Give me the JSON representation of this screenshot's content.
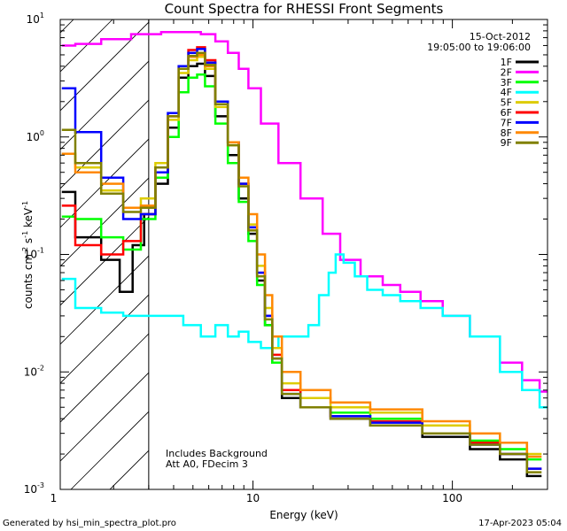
{
  "chart_data": {
    "type": "line",
    "title": "Count Spectra for RHESSI Front Segments",
    "xlabel": "Energy (keV)",
    "ylabel_parts": {
      "a": "counts cm",
      "b": "-2",
      "c": " s",
      "d": "-1",
      "e": " keV",
      "f": "-1"
    },
    "x_scale": "log",
    "y_scale": "log",
    "xlim": [
      1.08,
      300
    ],
    "ylim": [
      0.001,
      10
    ],
    "x_tick_labels": [
      {
        "v": 1,
        "t": "1"
      },
      {
        "v": 10,
        "t": "10"
      },
      {
        "v": 100,
        "t": "100"
      }
    ],
    "y_tick_labels": [
      {
        "v": 0.001,
        "b": "10",
        "e": "-3"
      },
      {
        "v": 0.01,
        "b": "10",
        "e": "-2"
      },
      {
        "v": 0.1,
        "b": "10",
        "e": "-1"
      },
      {
        "v": 1,
        "b": "10",
        "e": "0"
      },
      {
        "v": 10,
        "b": "10",
        "e": "1"
      }
    ],
    "header": {
      "date": "15-Oct-2012",
      "time_range": "19:05:00 to 19:06:00"
    },
    "legend_position": "top-right",
    "annotations": [
      "Includes Background",
      "Att A0, FDecim 3"
    ],
    "shaded_region_upper_kev": 3,
    "series": [
      {
        "name": "1F",
        "color": "#000000",
        "pts": [
          [
            1.1,
            0.34
          ],
          [
            1.5,
            0.14
          ],
          [
            2,
            0.09
          ],
          [
            2.3,
            0.048
          ],
          [
            2.7,
            0.12
          ],
          [
            3,
            0.22
          ],
          [
            3.5,
            0.4
          ],
          [
            4,
            1.2
          ],
          [
            4.5,
            3.2
          ],
          [
            5,
            4.0
          ],
          [
            5.5,
            4.2
          ],
          [
            6,
            3.3
          ],
          [
            7,
            1.5
          ],
          [
            8,
            0.7
          ],
          [
            9,
            0.3
          ],
          [
            10,
            0.15
          ],
          [
            11,
            0.06
          ],
          [
            12,
            0.025
          ],
          [
            13,
            0.012
          ],
          [
            15,
            0.006
          ],
          [
            20,
            0.005
          ],
          [
            30,
            0.004
          ],
          [
            50,
            0.0035
          ],
          [
            100,
            0.0028
          ],
          [
            150,
            0.0022
          ],
          [
            200,
            0.0018
          ],
          [
            280,
            0.0013
          ]
        ]
      },
      {
        "name": "2F",
        "color": "#ff00ff",
        "pts": [
          [
            1.1,
            6.0
          ],
          [
            1.5,
            6.2
          ],
          [
            2,
            6.8
          ],
          [
            3,
            7.5
          ],
          [
            4,
            7.8
          ],
          [
            5,
            7.8
          ],
          [
            6,
            7.5
          ],
          [
            7,
            6.5
          ],
          [
            8,
            5.2
          ],
          [
            9,
            3.8
          ],
          [
            10,
            2.6
          ],
          [
            12,
            1.3
          ],
          [
            15,
            0.6
          ],
          [
            20,
            0.3
          ],
          [
            25,
            0.15
          ],
          [
            30,
            0.09
          ],
          [
            40,
            0.065
          ],
          [
            50,
            0.055
          ],
          [
            60,
            0.048
          ],
          [
            80,
            0.04
          ],
          [
            100,
            0.03
          ],
          [
            150,
            0.02
          ],
          [
            200,
            0.012
          ],
          [
            250,
            0.0085
          ],
          [
            300,
            0.0068
          ]
        ]
      },
      {
        "name": "3F",
        "color": "#00ff00",
        "pts": [
          [
            1.1,
            0.21
          ],
          [
            1.5,
            0.2
          ],
          [
            2,
            0.14
          ],
          [
            2.5,
            0.11
          ],
          [
            3,
            0.2
          ],
          [
            3.5,
            0.45
          ],
          [
            4,
            1.0
          ],
          [
            4.5,
            2.4
          ],
          [
            5,
            3.2
          ],
          [
            5.5,
            3.4
          ],
          [
            6,
            2.7
          ],
          [
            7,
            1.3
          ],
          [
            8,
            0.6
          ],
          [
            9,
            0.28
          ],
          [
            10,
            0.13
          ],
          [
            11,
            0.055
          ],
          [
            12,
            0.025
          ],
          [
            13,
            0.012
          ],
          [
            15,
            0.007
          ],
          [
            20,
            0.005
          ],
          [
            30,
            0.0045
          ],
          [
            50,
            0.004
          ],
          [
            100,
            0.003
          ],
          [
            150,
            0.0026
          ],
          [
            200,
            0.0022
          ],
          [
            280,
            0.0018
          ]
        ]
      },
      {
        "name": "4F",
        "color": "#00ffff",
        "pts": [
          [
            1.1,
            0.062
          ],
          [
            1.5,
            0.035
          ],
          [
            2,
            0.032
          ],
          [
            2.5,
            0.03
          ],
          [
            3,
            0.03
          ],
          [
            4,
            0.03
          ],
          [
            5,
            0.025
          ],
          [
            6,
            0.02
          ],
          [
            7,
            0.025
          ],
          [
            8,
            0.02
          ],
          [
            9,
            0.022
          ],
          [
            10,
            0.018
          ],
          [
            12,
            0.016
          ],
          [
            15,
            0.02
          ],
          [
            18,
            0.02
          ],
          [
            20,
            0.025
          ],
          [
            23,
            0.045
          ],
          [
            25,
            0.07
          ],
          [
            27,
            0.1
          ],
          [
            30,
            0.085
          ],
          [
            35,
            0.065
          ],
          [
            40,
            0.05
          ],
          [
            50,
            0.045
          ],
          [
            60,
            0.04
          ],
          [
            80,
            0.035
          ],
          [
            100,
            0.03
          ],
          [
            150,
            0.02
          ],
          [
            200,
            0.01
          ],
          [
            250,
            0.007
          ],
          [
            300,
            0.005
          ]
        ]
      },
      {
        "name": "5F",
        "color": "#ddcc00",
        "pts": [
          [
            1.1,
            0.72
          ],
          [
            1.5,
            0.55
          ],
          [
            2,
            0.35
          ],
          [
            2.5,
            0.25
          ],
          [
            3,
            0.3
          ],
          [
            3.5,
            0.6
          ],
          [
            4,
            1.4
          ],
          [
            4.5,
            3.5
          ],
          [
            5,
            4.5
          ],
          [
            5.5,
            4.8
          ],
          [
            6,
            3.8
          ],
          [
            7,
            1.8
          ],
          [
            8,
            0.85
          ],
          [
            9,
            0.4
          ],
          [
            10,
            0.18
          ],
          [
            11,
            0.08
          ],
          [
            12,
            0.035
          ],
          [
            13,
            0.016
          ],
          [
            15,
            0.008
          ],
          [
            20,
            0.006
          ],
          [
            30,
            0.005
          ],
          [
            50,
            0.0045
          ],
          [
            100,
            0.0035
          ],
          [
            150,
            0.003
          ],
          [
            200,
            0.0025
          ],
          [
            280,
            0.002
          ]
        ]
      },
      {
        "name": "6F",
        "color": "#ff0000",
        "pts": [
          [
            1.1,
            0.26
          ],
          [
            1.5,
            0.12
          ],
          [
            2,
            0.1
          ],
          [
            2.5,
            0.13
          ],
          [
            3,
            0.22
          ],
          [
            3.5,
            0.5
          ],
          [
            4,
            1.5
          ],
          [
            4.5,
            4.0
          ],
          [
            5,
            5.5
          ],
          [
            5.5,
            5.8
          ],
          [
            6,
            4.5
          ],
          [
            7,
            2.0
          ],
          [
            8,
            0.9
          ],
          [
            9,
            0.4
          ],
          [
            10,
            0.17
          ],
          [
            11,
            0.07
          ],
          [
            12,
            0.03
          ],
          [
            13,
            0.014
          ],
          [
            15,
            0.007
          ],
          [
            20,
            0.005
          ],
          [
            30,
            0.0042
          ],
          [
            50,
            0.0038
          ],
          [
            100,
            0.003
          ],
          [
            150,
            0.0025
          ],
          [
            200,
            0.002
          ],
          [
            280,
            0.0015
          ]
        ]
      },
      {
        "name": "7F",
        "color": "#0000ff",
        "pts": [
          [
            1.1,
            2.6
          ],
          [
            1.5,
            1.1
          ],
          [
            2,
            0.45
          ],
          [
            2.5,
            0.2
          ],
          [
            3,
            0.22
          ],
          [
            3.5,
            0.5
          ],
          [
            4,
            1.6
          ],
          [
            4.5,
            4.0
          ],
          [
            5,
            5.2
          ],
          [
            5.5,
            5.6
          ],
          [
            6,
            4.3
          ],
          [
            7,
            2.0
          ],
          [
            8,
            0.9
          ],
          [
            9,
            0.4
          ],
          [
            10,
            0.17
          ],
          [
            11,
            0.07
          ],
          [
            12,
            0.03
          ],
          [
            13,
            0.013
          ],
          [
            15,
            0.0065
          ],
          [
            20,
            0.005
          ],
          [
            30,
            0.0042
          ],
          [
            50,
            0.0037
          ],
          [
            100,
            0.003
          ],
          [
            150,
            0.0024
          ],
          [
            200,
            0.002
          ],
          [
            280,
            0.0015
          ]
        ]
      },
      {
        "name": "8F",
        "color": "#ff8800",
        "pts": [
          [
            1.1,
            0.72
          ],
          [
            1.5,
            0.5
          ],
          [
            2,
            0.4
          ],
          [
            2.5,
            0.25
          ],
          [
            3,
            0.26
          ],
          [
            3.5,
            0.55
          ],
          [
            4,
            1.5
          ],
          [
            4.5,
            3.8
          ],
          [
            5,
            4.8
          ],
          [
            5.5,
            5.0
          ],
          [
            6,
            4.0
          ],
          [
            7,
            1.9
          ],
          [
            8,
            0.9
          ],
          [
            9,
            0.45
          ],
          [
            10,
            0.22
          ],
          [
            11,
            0.1
          ],
          [
            12,
            0.045
          ],
          [
            13,
            0.02
          ],
          [
            15,
            0.01
          ],
          [
            20,
            0.007
          ],
          [
            30,
            0.0055
          ],
          [
            50,
            0.0048
          ],
          [
            100,
            0.0038
          ],
          [
            150,
            0.003
          ],
          [
            200,
            0.0025
          ],
          [
            280,
            0.0019
          ]
        ]
      },
      {
        "name": "9F",
        "color": "#808000",
        "pts": [
          [
            1.1,
            1.15
          ],
          [
            1.5,
            0.6
          ],
          [
            2,
            0.33
          ],
          [
            2.5,
            0.23
          ],
          [
            3,
            0.25
          ],
          [
            3.5,
            0.55
          ],
          [
            4,
            1.5
          ],
          [
            4.5,
            3.8
          ],
          [
            5,
            4.9
          ],
          [
            5.5,
            5.2
          ],
          [
            6,
            4.1
          ],
          [
            7,
            1.9
          ],
          [
            8,
            0.85
          ],
          [
            9,
            0.38
          ],
          [
            10,
            0.16
          ],
          [
            11,
            0.065
          ],
          [
            12,
            0.028
          ],
          [
            13,
            0.013
          ],
          [
            15,
            0.0065
          ],
          [
            20,
            0.005
          ],
          [
            30,
            0.004
          ],
          [
            50,
            0.0035
          ],
          [
            100,
            0.003
          ],
          [
            150,
            0.0024
          ],
          [
            200,
            0.002
          ],
          [
            280,
            0.0014
          ]
        ]
      }
    ]
  },
  "footer": {
    "generated_by": "Generated by hsi_min_spectra_plot.pro",
    "timestamp": "17-Apr-2023 05:04"
  }
}
